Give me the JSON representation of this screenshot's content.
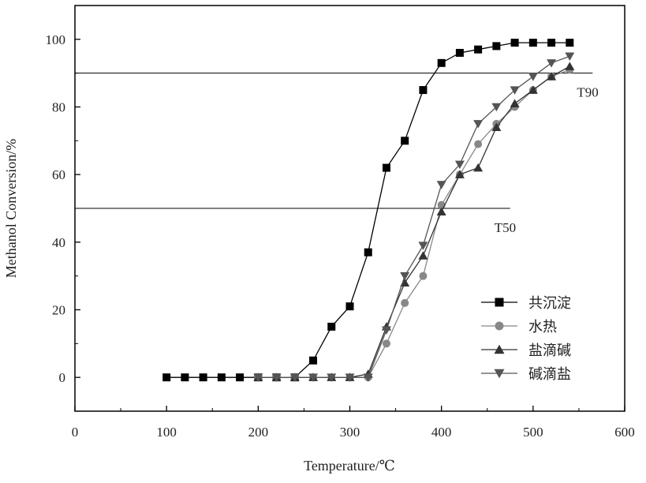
{
  "chart_data": {
    "type": "line",
    "xlabel": "Temperature/℃",
    "ylabel": "Methanol Conversion/%",
    "xlim": [
      0,
      600
    ],
    "ylim": [
      -10,
      110
    ],
    "x_ticks": [
      0,
      100,
      200,
      300,
      400,
      500,
      600
    ],
    "y_ticks": [
      0,
      20,
      40,
      60,
      80,
      100
    ],
    "grid": false,
    "legend_position": "bottom-right",
    "reference_lines": [
      {
        "label": "T90",
        "y": 90,
        "x_range": [
          0,
          565
        ]
      },
      {
        "label": "T50",
        "y": 50,
        "x_range": [
          0,
          475
        ]
      }
    ],
    "series": [
      {
        "name": "共沉淀",
        "marker": "square",
        "color": "#000000",
        "x": [
          100,
          120,
          140,
          160,
          180,
          200,
          220,
          240,
          260,
          280,
          300,
          320,
          340,
          360,
          380,
          400,
          420,
          440,
          460,
          480,
          500,
          520,
          540
        ],
        "y": [
          0,
          0,
          0,
          0,
          0,
          0,
          0,
          0,
          5,
          15,
          21,
          37,
          62,
          70,
          85,
          93,
          96,
          97,
          98,
          99,
          99,
          99,
          99
        ]
      },
      {
        "name": "水热",
        "marker": "circle",
        "color": "#888888",
        "x": [
          200,
          220,
          240,
          260,
          280,
          300,
          320,
          340,
          360,
          380,
          400,
          420,
          440,
          460,
          480,
          500,
          520,
          540
        ],
        "y": [
          0,
          0,
          0,
          0,
          0,
          0,
          0,
          10,
          22,
          30,
          51,
          60,
          69,
          75,
          80,
          85,
          89,
          91
        ]
      },
      {
        "name": "盐滴碱",
        "marker": "triangle-up",
        "color": "#333333",
        "x": [
          200,
          220,
          240,
          260,
          280,
          300,
          320,
          340,
          360,
          380,
          400,
          420,
          440,
          460,
          480,
          500,
          520,
          540
        ],
        "y": [
          0,
          0,
          0,
          0,
          0,
          0,
          1,
          15,
          28,
          36,
          49,
          60,
          62,
          74,
          81,
          85,
          89,
          92
        ]
      },
      {
        "name": "碱滴盐",
        "marker": "triangle-down",
        "color": "#555555",
        "x": [
          200,
          220,
          240,
          260,
          280,
          300,
          320,
          340,
          360,
          380,
          400,
          420,
          440,
          460,
          480,
          500,
          520,
          540
        ],
        "y": [
          0,
          0,
          0,
          0,
          0,
          0,
          0,
          14,
          30,
          39,
          57,
          63,
          75,
          80,
          85,
          89,
          93,
          95
        ]
      }
    ]
  }
}
